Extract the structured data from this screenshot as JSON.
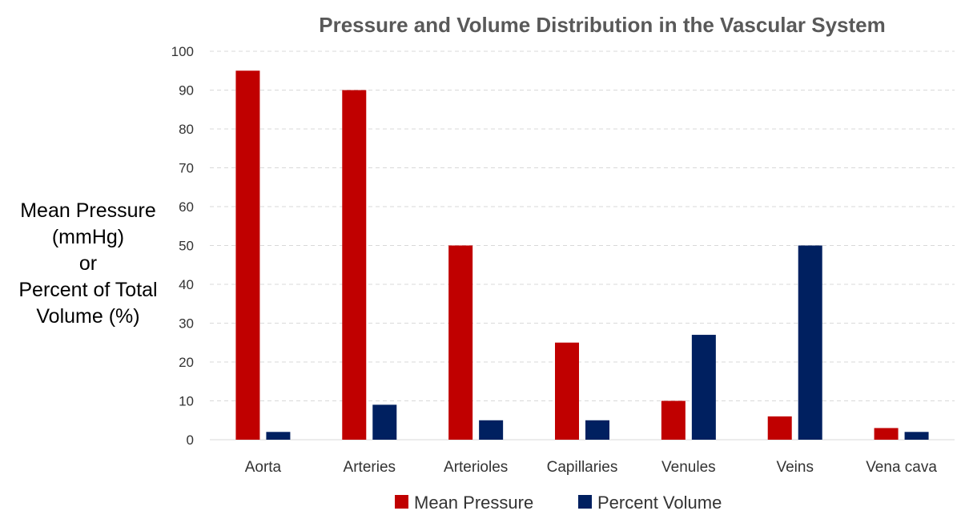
{
  "chart_data": {
    "type": "bar",
    "title": "Pressure and Volume Distribution in the Vascular System",
    "ylabel_lines": [
      "Mean Pressure",
      "(mmHg)",
      "or",
      "Percent of Total",
      "Volume (%)"
    ],
    "xlabel": "",
    "ylim": [
      0,
      100
    ],
    "yticks": [
      0,
      10,
      20,
      30,
      40,
      50,
      60,
      70,
      80,
      90,
      100
    ],
    "grid": true,
    "legend_position": "bottom",
    "categories": [
      "Aorta",
      "Arteries",
      "Arterioles",
      "Capillaries",
      "Venules",
      "Veins",
      "Vena cava"
    ],
    "series": [
      {
        "name": "Mean Pressure",
        "color": "#c00000",
        "values": [
          95,
          90,
          50,
          25,
          10,
          6,
          3
        ]
      },
      {
        "name": "Percent Volume",
        "color": "#002060",
        "values": [
          2,
          9,
          5,
          5,
          27,
          50,
          2
        ]
      }
    ]
  }
}
